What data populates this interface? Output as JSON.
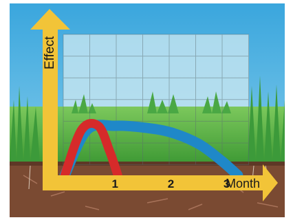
{
  "chart_data": {
    "type": "line",
    "title": "",
    "xlabel": "Month",
    "ylabel": "Effect",
    "x_ticks": [
      "1",
      "2",
      "3"
    ],
    "xlim": [
      0,
      3.3
    ],
    "ylim": [
      0,
      1
    ],
    "grid": true,
    "series": [
      {
        "color": "#d62a2a",
        "x": [
          0.1,
          0.4,
          0.7,
          0.9,
          1.05
        ],
        "y": [
          0.0,
          0.55,
          0.6,
          0.3,
          0.0
        ]
      },
      {
        "color": "#1f88c8",
        "x": [
          0.1,
          0.5,
          1.0,
          1.5,
          2.0,
          2.5,
          2.9,
          3.2
        ],
        "y": [
          0.0,
          0.55,
          0.6,
          0.58,
          0.52,
          0.38,
          0.18,
          0.0
        ]
      }
    ]
  },
  "colors": {
    "sky": "#49b4e3",
    "grid_panel": "#bfe2ee",
    "grass": "#5fb84a",
    "soil": "#7a4a32",
    "axis": "#f2c438"
  }
}
